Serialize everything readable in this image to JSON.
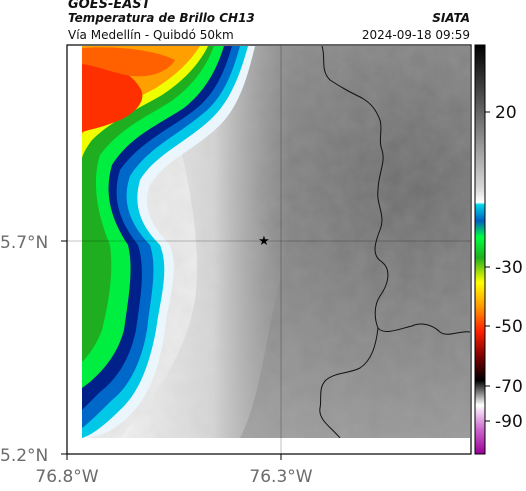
{
  "header": {
    "source": "GOES-EAST",
    "product": "Temperatura de Brillo CH13",
    "region": "Vía Medellín - Quibdó 50km",
    "org": "SIATA",
    "timestamp": "2024-09-18 09:59"
  },
  "axes": {
    "y_ticks": [
      "5.7°N",
      "5.2°N"
    ],
    "x_ticks": [
      "76.8°W",
      "76.3°W"
    ]
  },
  "colorbar": {
    "ticks": [
      "20",
      "-30",
      "-50",
      "-70",
      "-90"
    ]
  },
  "marker": {
    "symbol": "★"
  }
}
